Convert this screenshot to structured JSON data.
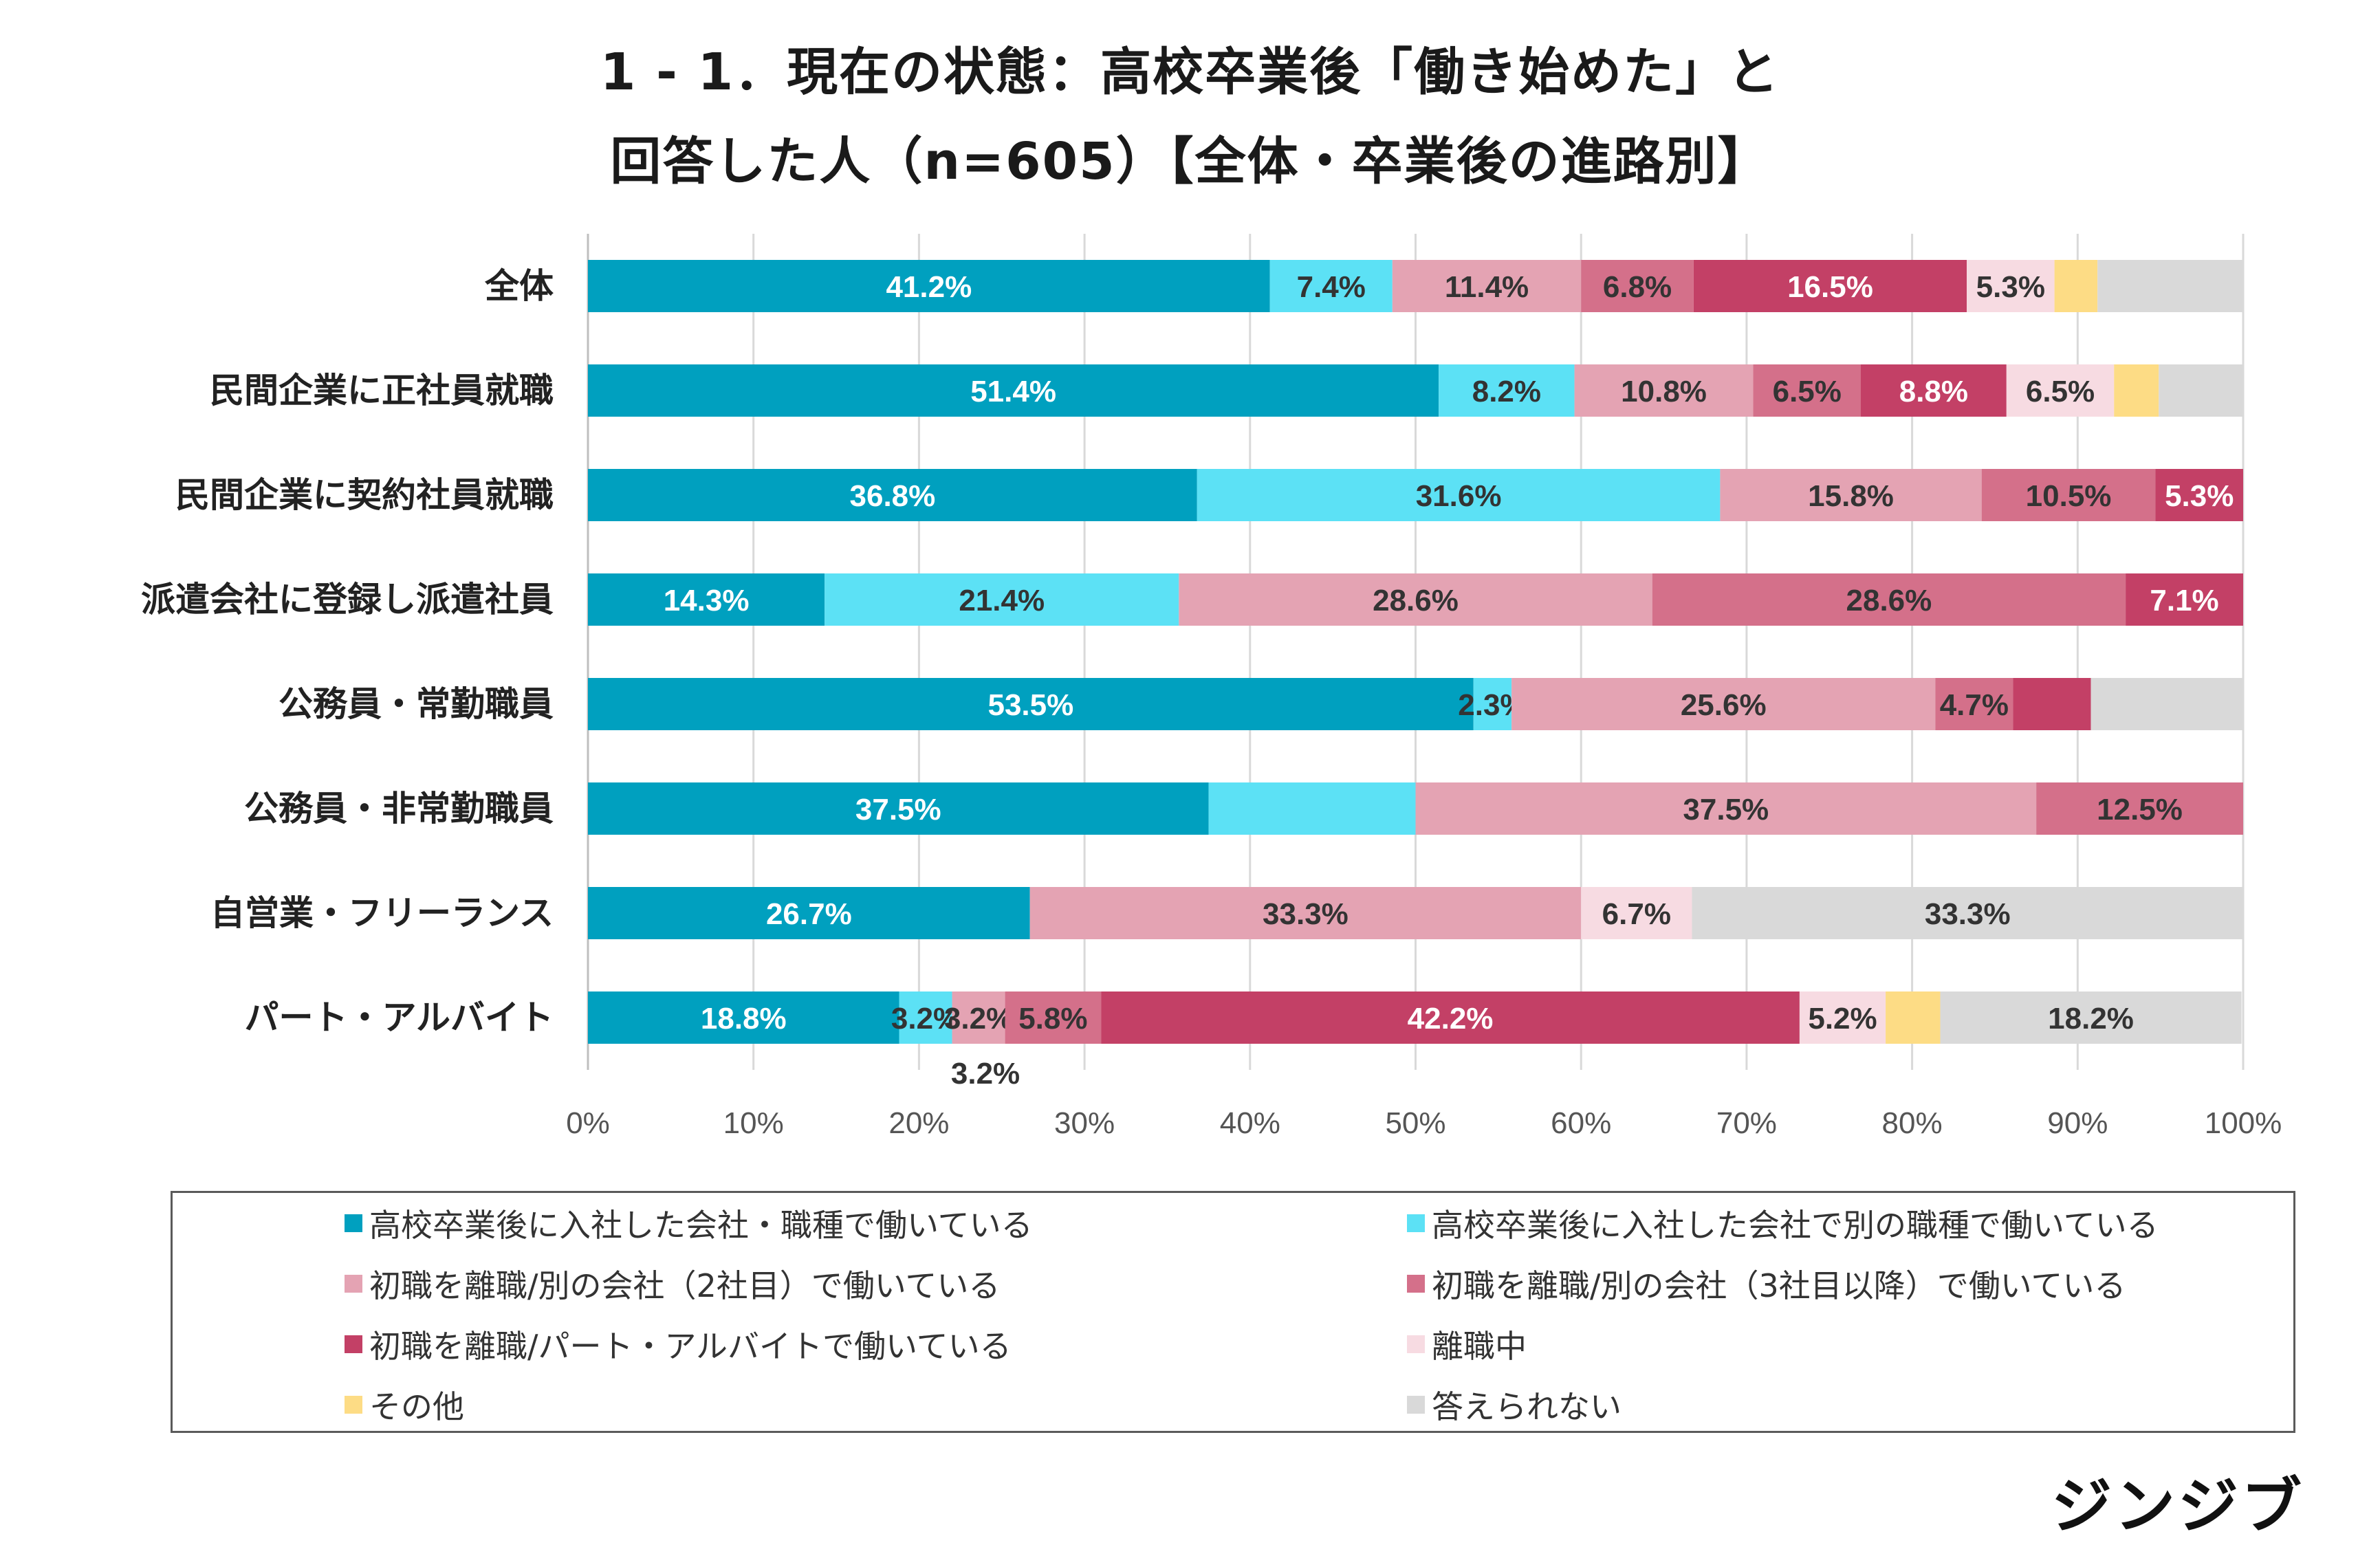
{
  "title": {
    "line1": "1 - 1．現在の状態：高校卒業後「働き始めた」と",
    "line2": "回答した人（n=605）【全体・卒業後の進路別】"
  },
  "brand": "ジンジブ",
  "chart_data": {
    "type": "bar",
    "orientation": "horizontal",
    "stacked": true,
    "xlim": [
      0,
      100
    ],
    "x_ticks": [
      "0%",
      "10%",
      "20%",
      "30%",
      "40%",
      "50%",
      "60%",
      "70%",
      "80%",
      "90%",
      "100%"
    ],
    "grid": true,
    "legend_position": "bottom",
    "categories": [
      "全体",
      "民間企業に正社員就職",
      "民間企業に契約社員就職",
      "派遣会社に登録し派遣社員",
      "公務員・常勤職員",
      "公務員・非常勤職員",
      "自営業・フリーランス",
      "パート・アルバイト"
    ],
    "series": [
      {
        "name": "高校卒業後に入社した会社・職種で働いている",
        "color": "#00a0bf",
        "label_color": "#ffffff",
        "values": [
          41.2,
          51.4,
          36.8,
          14.3,
          53.5,
          37.5,
          26.7,
          18.8
        ],
        "labels": [
          "41.2%",
          "51.4%",
          "36.8%",
          "14.3%",
          "53.5%",
          "37.5%",
          "26.7%",
          "18.8%"
        ]
      },
      {
        "name": "高校卒業後に入社した会社で別の職種で働いている",
        "color": "#5ce1f5",
        "label_color": "#333333",
        "values": [
          7.4,
          8.2,
          31.6,
          21.4,
          2.3,
          12.5,
          0,
          3.2
        ],
        "labels": [
          "7.4%",
          "8.2%",
          "31.6%",
          "21.4%",
          "2.3%",
          "",
          "",
          "3.2%"
        ]
      },
      {
        "name": "初職を離職/別の会社（2社目）で働いている",
        "color": "#e4a3b3",
        "label_color": "#333333",
        "values": [
          11.4,
          10.8,
          15.8,
          28.6,
          25.6,
          37.5,
          33.3,
          3.2
        ],
        "labels": [
          "11.4%",
          "10.8%",
          "15.8%",
          "28.6%",
          "25.6%",
          "37.5%",
          "33.3%",
          "3.2%"
        ]
      },
      {
        "name": "初職を離職/別の会社（3社目以降）で働いている",
        "color": "#d4708a",
        "label_color": "#333333",
        "values": [
          6.8,
          6.5,
          10.5,
          28.6,
          4.7,
          12.5,
          0,
          5.8
        ],
        "labels": [
          "6.8%",
          "6.5%",
          "10.5%",
          "28.6%",
          "4.7%",
          "12.5%",
          "",
          "5.8%"
        ]
      },
      {
        "name": "初職を離職/パート・アルバイトで働いている",
        "color": "#c34066",
        "label_color": "#ffffff",
        "values": [
          16.5,
          8.8,
          5.3,
          7.1,
          4.7,
          0,
          0,
          42.2
        ],
        "labels": [
          "16.5%",
          "8.8%",
          "5.3%",
          "7.1%",
          "",
          "",
          "",
          "42.2%"
        ]
      },
      {
        "name": "離職中",
        "color": "#f7dbe2",
        "label_color": "#333333",
        "values": [
          5.3,
          6.5,
          0,
          0,
          0,
          0,
          6.7,
          5.2
        ],
        "labels": [
          "5.3%",
          "6.5%",
          "",
          "",
          "",
          "",
          "6.7%",
          "5.2%"
        ]
      },
      {
        "name": "その他",
        "color": "#fddc85",
        "label_color": "#333333",
        "values": [
          2.6,
          2.7,
          0,
          0,
          0,
          0,
          0,
          3.3
        ],
        "labels": [
          "",
          "",
          "",
          "",
          "",
          "",
          "",
          ""
        ]
      },
      {
        "name": "答えられない",
        "color": "#d9d9d9",
        "label_color": "#333333",
        "values": [
          8.8,
          5.1,
          0,
          0,
          9.2,
          0,
          33.3,
          18.2
        ],
        "labels": [
          "",
          "",
          "",
          "",
          "",
          "",
          "33.3%",
          "18.2%"
        ]
      }
    ],
    "extra_labels": [
      {
        "category_index": 7,
        "series_index": 2,
        "text": "3.2%"
      }
    ]
  }
}
